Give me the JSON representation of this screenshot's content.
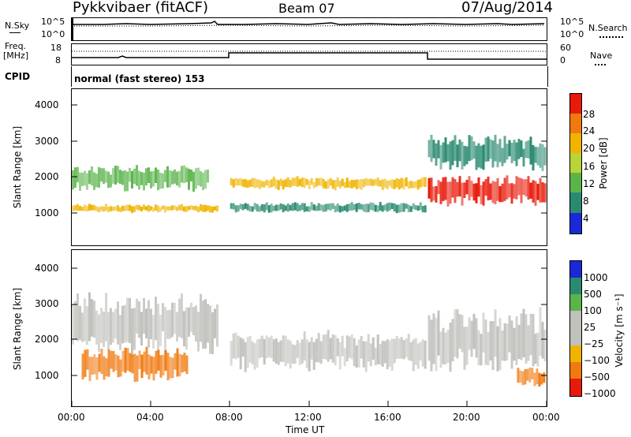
{
  "header": {
    "station": "Pykkvibaer (fitACF)",
    "beam": "Beam 07",
    "date": "07/Aug/2014"
  },
  "noise_panel": {
    "left_label": "N.Sky",
    "left_ticks": [
      "10^5",
      "10^0"
    ],
    "right_label": "N.Search",
    "right_ticks": [
      "10^5",
      "10^0"
    ]
  },
  "freq_panel": {
    "left_label_1": "Freq.",
    "left_label_2": "[MHz]",
    "left_ticks": [
      "18",
      "8"
    ],
    "right_label": "Nave",
    "right_ticks": [
      "60",
      "0"
    ]
  },
  "cpid": {
    "label": "CPID",
    "value": "normal (fast stereo) 153"
  },
  "colors": {
    "white": "#ffffff",
    "grey": "#c0c0bc",
    "blue": "#1a28d8",
    "yellow_green": "#b8d438",
    "orange": "#f07a10",
    "red": "#e81a0a"
  },
  "chart_data": [
    {
      "type": "heatmap",
      "ylabel": "Slant Range [km]",
      "xlabel": "",
      "x_ticks": [
        "00:00",
        "04:00",
        "08:00",
        "12:00",
        "16:00",
        "20:00",
        "00:00"
      ],
      "y_ticks": [
        "1000",
        "2000",
        "3000",
        "4000"
      ],
      "ylim": [
        200,
        4600
      ],
      "colorbar": {
        "label": "Power [dB]",
        "ticks": [
          "28",
          "24",
          "20",
          "16",
          "12",
          "8",
          "4"
        ],
        "colors": [
          "#e81a0a",
          "#f07a10",
          "#f0b400",
          "#b8d438",
          "#5ab44a",
          "#2a8a70",
          "#1a28d8"
        ]
      },
      "bands": [
        {
          "t": [
            0.0,
            7.5
          ],
          "range": [
            1150,
            1350
          ],
          "power": 18
        },
        {
          "t": [
            0.0,
            7.0
          ],
          "range": [
            1800,
            2400
          ],
          "power": 10
        },
        {
          "t": [
            8.0,
            18.0
          ],
          "range": [
            1800,
            2100
          ],
          "power": 20
        },
        {
          "t": [
            8.0,
            18.0
          ],
          "range": [
            1150,
            1400
          ],
          "power": 8
        },
        {
          "t": [
            18.0,
            24.0
          ],
          "range": [
            1400,
            2100
          ],
          "power": 26
        },
        {
          "t": [
            18.0,
            24.0
          ],
          "range": [
            2400,
            3200
          ],
          "power": 6
        }
      ]
    },
    {
      "type": "heatmap",
      "ylabel": "Slant Range [km]",
      "xlabel": "Time UT",
      "x_ticks": [
        "00:00",
        "04:00",
        "08:00",
        "12:00",
        "16:00",
        "20:00",
        "00:00"
      ],
      "y_ticks": [
        "1000",
        "2000",
        "3000",
        "4000"
      ],
      "ylim": [
        200,
        4600
      ],
      "colorbar": {
        "label": "Velocity [m s⁻¹]",
        "ticks": [
          "1000",
          "500",
          "100",
          "25",
          "−25",
          "−100",
          "−500",
          "−1000"
        ],
        "colors": [
          "#1a28d8",
          "#2a8a70",
          "#5ab44a",
          "#c0c0bc",
          "#c0c0bc",
          "#f0b400",
          "#f07a10",
          "#e81a0a"
        ]
      },
      "bands": [
        {
          "t": [
            0.0,
            7.5
          ],
          "range": [
            1800,
            3200
          ],
          "velocity": 0
        },
        {
          "t": [
            0.5,
            6.0
          ],
          "range": [
            1000,
            1800
          ],
          "velocity": -500
        },
        {
          "t": [
            8.0,
            18.0
          ],
          "range": [
            1300,
            2200
          ],
          "velocity": 0
        },
        {
          "t": [
            18.0,
            24.0
          ],
          "range": [
            1300,
            2800
          ],
          "velocity": 0
        },
        {
          "t": [
            22.5,
            24.0
          ],
          "range": [
            800,
            1300
          ],
          "velocity": -500
        }
      ]
    }
  ]
}
